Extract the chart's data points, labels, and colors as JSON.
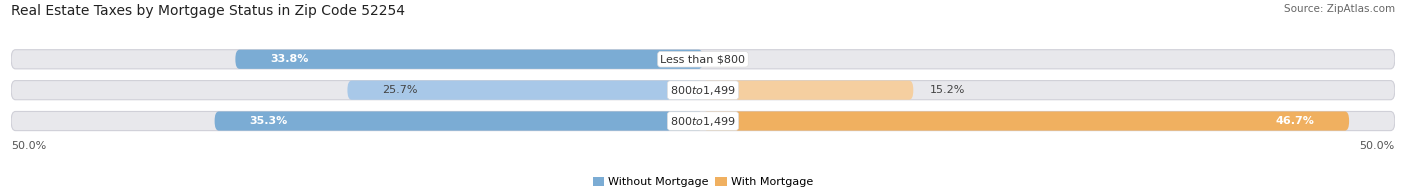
{
  "title": "Real Estate Taxes by Mortgage Status in Zip Code 52254",
  "source": "Source: ZipAtlas.com",
  "rows": [
    {
      "label": "Less than $800",
      "without_pct": 33.8,
      "with_pct": 0.0
    },
    {
      "label": "$800 to $1,499",
      "without_pct": 25.7,
      "with_pct": 15.2
    },
    {
      "label": "$800 to $1,499",
      "without_pct": 35.3,
      "with_pct": 46.7
    }
  ],
  "color_without": "#7BACD4",
  "color_without_light": "#A8C8E8",
  "color_with": "#F0B060",
  "color_with_light": "#F5CFA0",
  "bar_bg": "#E8E8EC",
  "bar_bg_border": "#D0D0D8",
  "x_max": 50.0,
  "legend_without": "Without Mortgage",
  "legend_with": "With Mortgage",
  "title_fontsize": 10,
  "label_fontsize": 8,
  "source_fontsize": 7.5,
  "axis_fontsize": 8
}
